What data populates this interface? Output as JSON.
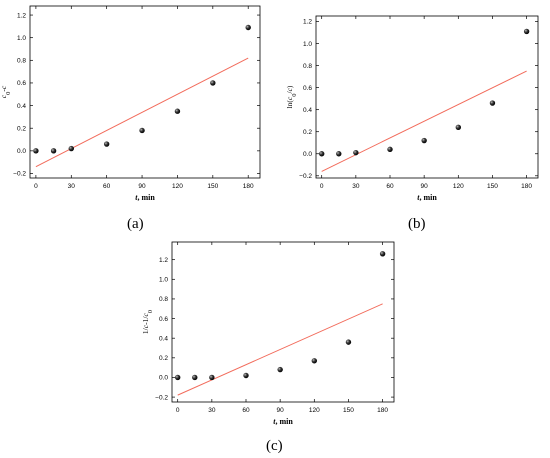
{
  "chart_data": [
    {
      "type": "scatter",
      "panel_label": "(a)",
      "xlabel": "t, min",
      "ylabel": "c0-c",
      "xlim": [
        -5,
        190
      ],
      "ylim": [
        -0.24,
        1.28
      ],
      "xticks": [
        0,
        30,
        60,
        90,
        120,
        150,
        180
      ],
      "yticks": [
        -0.2,
        0.0,
        0.2,
        0.4,
        0.6,
        0.8,
        1.0,
        1.2
      ],
      "points": [
        {
          "x": 0,
          "y": 0.0
        },
        {
          "x": 15,
          "y": 0.0
        },
        {
          "x": 30,
          "y": 0.02
        },
        {
          "x": 60,
          "y": 0.06
        },
        {
          "x": 90,
          "y": 0.18
        },
        {
          "x": 120,
          "y": 0.35
        },
        {
          "x": 150,
          "y": 0.6
        },
        {
          "x": 180,
          "y": 1.09
        }
      ],
      "fit_line": {
        "x": [
          0,
          180
        ],
        "y": [
          -0.14,
          0.82
        ],
        "color": "#f26b5b"
      },
      "marker_color": "#111111",
      "grid": false
    },
    {
      "type": "scatter",
      "panel_label": "(b)",
      "xlabel": "t, min",
      "ylabel": "ln(c0/c)",
      "xlim": [
        -5,
        190
      ],
      "ylim": [
        -0.22,
        1.25
      ],
      "xticks": [
        0,
        30,
        60,
        90,
        120,
        150,
        180
      ],
      "yticks": [
        -0.2,
        0.0,
        0.2,
        0.4,
        0.6,
        0.8,
        1.0,
        1.2
      ],
      "points": [
        {
          "x": 0,
          "y": 0.0
        },
        {
          "x": 15,
          "y": 0.0
        },
        {
          "x": 30,
          "y": 0.01
        },
        {
          "x": 60,
          "y": 0.04
        },
        {
          "x": 90,
          "y": 0.12
        },
        {
          "x": 120,
          "y": 0.24
        },
        {
          "x": 150,
          "y": 0.46
        },
        {
          "x": 180,
          "y": 1.11
        }
      ],
      "fit_line": {
        "x": [
          0,
          180
        ],
        "y": [
          -0.16,
          0.75
        ],
        "color": "#f26b5b"
      },
      "marker_color": "#111111",
      "grid": false
    },
    {
      "type": "scatter",
      "panel_label": "(c)",
      "xlabel": "t, min",
      "ylabel": "1/c-1/c0",
      "xlim": [
        -5,
        190
      ],
      "ylim": [
        -0.25,
        1.38
      ],
      "xticks": [
        0,
        30,
        60,
        90,
        120,
        150,
        180
      ],
      "yticks": [
        -0.2,
        0.0,
        0.2,
        0.4,
        0.6,
        0.8,
        1.0,
        1.2
      ],
      "points": [
        {
          "x": 0,
          "y": 0.0
        },
        {
          "x": 15,
          "y": 0.0
        },
        {
          "x": 30,
          "y": 0.0
        },
        {
          "x": 60,
          "y": 0.02
        },
        {
          "x": 90,
          "y": 0.08
        },
        {
          "x": 120,
          "y": 0.17
        },
        {
          "x": 150,
          "y": 0.36
        },
        {
          "x": 180,
          "y": 1.26
        }
      ],
      "fit_line": {
        "x": [
          0,
          180
        ],
        "y": [
          -0.18,
          0.75
        ],
        "color": "#f26b5b"
      },
      "marker_color": "#111111",
      "grid": false
    }
  ]
}
